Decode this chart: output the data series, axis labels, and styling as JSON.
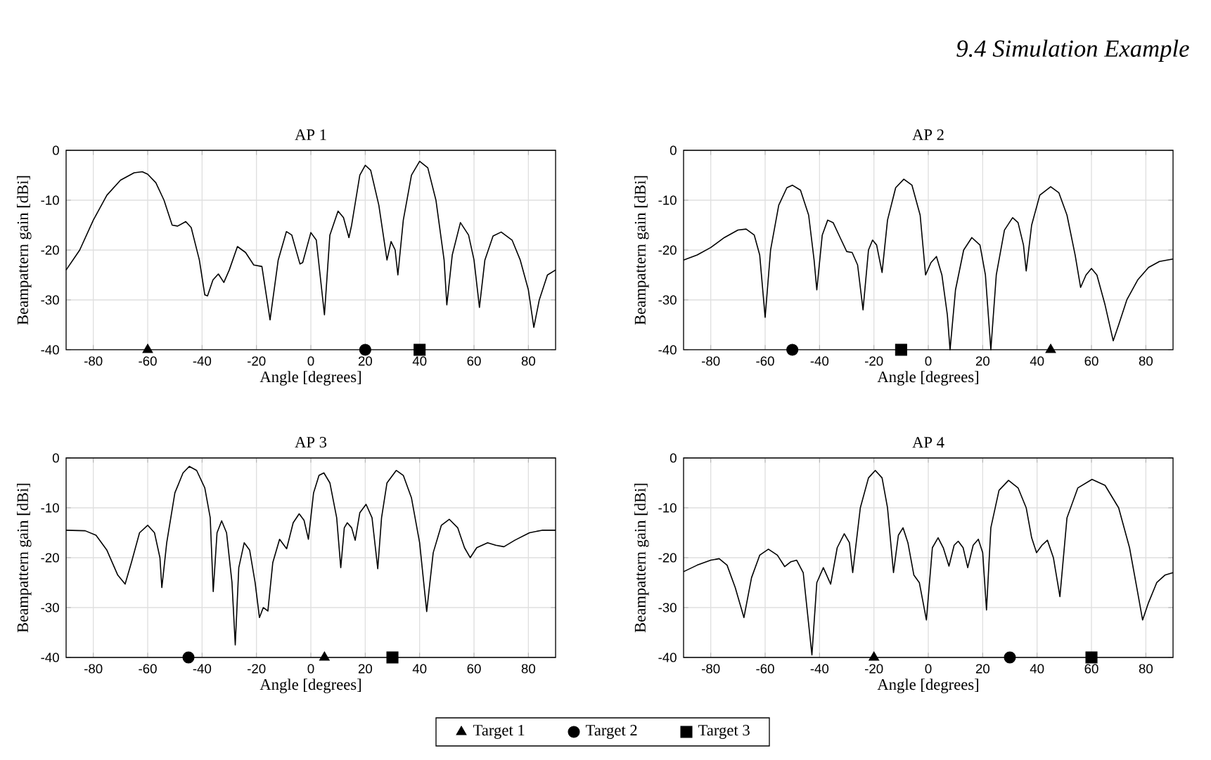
{
  "chart_data": [
    {
      "type": "line",
      "title": "AP 1",
      "xlabel": "Angle [degrees]",
      "ylabel": "Beampattern gain [dBi]",
      "xlim": [
        -90,
        90
      ],
      "ylim": [
        -40,
        0
      ],
      "xticks": [
        -80,
        -60,
        -40,
        -20,
        0,
        20,
        40,
        60,
        80
      ],
      "yticks": [
        -40,
        -30,
        -20,
        -10,
        0
      ],
      "grid": true,
      "legend": "bottom",
      "annotations": [
        "9.4 Simulation Example"
      ],
      "series": [
        {
          "type": "line",
          "color": "#000000",
          "line_style": "solid",
          "x": [
            -90,
            -85,
            -80,
            -75,
            -70,
            -65,
            -62,
            -60,
            -57,
            -54,
            -51,
            -49,
            -46,
            -44,
            -41,
            -39,
            -38,
            -36,
            -34,
            -32,
            -30,
            -27,
            -24,
            -21,
            -18,
            -15,
            -12,
            -9,
            -7,
            -4,
            -3,
            0,
            2,
            5,
            7,
            10,
            12,
            14,
            15,
            18,
            20,
            22,
            25,
            28,
            29.5,
            31,
            32,
            34,
            37,
            40,
            43,
            46,
            49,
            50,
            52,
            55,
            58,
            60,
            62,
            64,
            67,
            70,
            74,
            77,
            80,
            82,
            84,
            87,
            90
          ],
          "values": [
            -24,
            -20,
            -14,
            -9,
            -6,
            -4.5,
            -4.3,
            -4.8,
            -6.5,
            -10,
            -15,
            -15.2,
            -14.3,
            -15.5,
            -22,
            -29,
            -29.2,
            -26,
            -24.8,
            -26.5,
            -24,
            -19.3,
            -20.5,
            -23,
            -23.3,
            -34,
            -22,
            -16.3,
            -17,
            -22.8,
            -22.5,
            -16.5,
            -18,
            -33,
            -17,
            -12.2,
            -13.5,
            -17.5,
            -15,
            -5,
            -3,
            -4,
            -11,
            -22,
            -18.3,
            -20,
            -25,
            -14,
            -5,
            -2.2,
            -3.5,
            -10,
            -22,
            -31,
            -21,
            -14.5,
            -17,
            -22,
            -31.5,
            -22,
            -17.2,
            -16.4,
            -18,
            -22,
            -28,
            -35.5,
            -30,
            -25,
            -24
          ]
        },
        {
          "type": "scatter",
          "name": "Target 1",
          "marker": "triangle",
          "color": "#000000",
          "x": [
            -60
          ],
          "values": [
            -40
          ]
        },
        {
          "type": "scatter",
          "name": "Target 2",
          "marker": "circle",
          "color": "#000000",
          "x": [
            20
          ],
          "values": [
            -40
          ]
        },
        {
          "type": "scatter",
          "name": "Target 3",
          "marker": "square",
          "color": "#000000",
          "x": [
            40
          ],
          "values": [
            -40
          ]
        }
      ]
    },
    {
      "type": "line",
      "title": "AP 2",
      "xlabel": "Angle [degrees]",
      "ylabel": "Beampattern gain [dBi]",
      "xlim": [
        -90,
        90
      ],
      "ylim": [
        -40,
        0
      ],
      "xticks": [
        -80,
        -60,
        -40,
        -20,
        0,
        20,
        40,
        60,
        80
      ],
      "yticks": [
        -40,
        -30,
        -20,
        -10,
        0
      ],
      "grid": true,
      "series": [
        {
          "type": "line",
          "color": "#000000",
          "line_style": "solid",
          "x": [
            -90,
            -85,
            -80,
            -75,
            -70,
            -67,
            -64,
            -62,
            -60,
            -58,
            -55,
            -52,
            -50,
            -47,
            -44,
            -42,
            -41,
            -39,
            -37,
            -35,
            -32,
            -30,
            -28,
            -26,
            -24,
            -22,
            -20.5,
            -19,
            -17,
            -15,
            -12,
            -9,
            -6,
            -3,
            -1,
            1,
            3,
            5,
            7,
            8,
            10,
            13,
            16,
            19,
            21,
            23,
            25,
            28,
            31,
            33,
            35,
            36,
            38,
            41,
            45,
            48,
            51,
            54,
            56,
            58,
            60,
            62,
            65,
            68,
            70,
            73,
            77,
            81,
            85,
            90
          ],
          "values": [
            -22,
            -21,
            -19.5,
            -17.5,
            -16,
            -15.8,
            -17,
            -21,
            -33.5,
            -20,
            -11,
            -7.5,
            -7,
            -8,
            -13,
            -22,
            -28,
            -17,
            -14,
            -14.5,
            -18,
            -20.3,
            -20.5,
            -23,
            -32,
            -20,
            -18,
            -19,
            -24.5,
            -14,
            -7.5,
            -5.8,
            -7,
            -13,
            -25,
            -22.5,
            -21.3,
            -25,
            -33,
            -40,
            -28,
            -20,
            -17.5,
            -19,
            -25,
            -40,
            -25,
            -16,
            -13.5,
            -14.5,
            -19,
            -24.2,
            -15,
            -9,
            -7.3,
            -8.5,
            -13,
            -21,
            -27.5,
            -25,
            -23.7,
            -25,
            -31,
            -38.2,
            -35,
            -30,
            -26,
            -23.5,
            -22.3,
            -21.8
          ]
        },
        {
          "type": "scatter",
          "marker": "triangle",
          "color": "#000000",
          "x": [
            45
          ],
          "values": [
            -40
          ]
        },
        {
          "type": "scatter",
          "marker": "circle",
          "color": "#000000",
          "x": [
            -50
          ],
          "values": [
            -40
          ]
        },
        {
          "type": "scatter",
          "marker": "square",
          "color": "#000000",
          "x": [
            -10
          ],
          "values": [
            -40
          ]
        }
      ]
    },
    {
      "type": "line",
      "title": "AP 3",
      "xlabel": "Angle [degrees]",
      "ylabel": "Beampattern gain [dBi]",
      "xlim": [
        -90,
        90
      ],
      "ylim": [
        -40,
        0
      ],
      "xticks": [
        -80,
        -60,
        -40,
        -20,
        0,
        20,
        40,
        60,
        80
      ],
      "yticks": [
        -40,
        -30,
        -20,
        -10,
        0
      ],
      "grid": true,
      "series": [
        {
          "type": "line",
          "color": "#000000",
          "line_style": "solid",
          "x": [
            -90,
            -83,
            -79,
            -75,
            -71,
            -68.3,
            -66,
            -63,
            -60,
            -57.5,
            -55.5,
            -54.8,
            -53,
            -50,
            -47,
            -44.7,
            -42,
            -39,
            -37,
            -35.9,
            -34.5,
            -32.8,
            -31,
            -29,
            -27.8,
            -26.5,
            -24.5,
            -22.5,
            -20.5,
            -18.9,
            -17.5,
            -15.8,
            -14,
            -11.5,
            -8.9,
            -6.5,
            -4.3,
            -2.5,
            -0.9,
            1,
            3,
            4.8,
            7,
            9.5,
            11,
            12.3,
            13.4,
            15,
            16.3,
            18,
            20.3,
            22.5,
            24.6,
            26,
            28,
            31.4,
            34,
            37,
            40,
            42.6,
            45,
            48,
            50.9,
            54,
            56.5,
            58.6,
            61,
            65,
            68,
            71,
            75,
            80.4,
            85,
            90
          ],
          "values": [
            -14.5,
            -14.6,
            -15.5,
            -18.5,
            -23.5,
            -25.3,
            -21,
            -15,
            -13.5,
            -15,
            -20,
            -26,
            -17,
            -7,
            -3,
            -1.7,
            -2.5,
            -6,
            -12,
            -26.8,
            -15,
            -12.6,
            -15,
            -25,
            -37.5,
            -22,
            -17,
            -18.5,
            -25,
            -32,
            -30,
            -30.7,
            -21,
            -16.3,
            -18.2,
            -13,
            -11.2,
            -12.5,
            -16.3,
            -7,
            -3.5,
            -3,
            -5,
            -12,
            -22,
            -14,
            -13,
            -14,
            -16.5,
            -11,
            -9.3,
            -12,
            -22.2,
            -12,
            -5,
            -2.5,
            -3.5,
            -8,
            -17,
            -30.8,
            -19,
            -13.5,
            -12.3,
            -14,
            -18,
            -20,
            -18,
            -17,
            -17.5,
            -17.8,
            -16.5,
            -15,
            -14.5,
            -14.5
          ]
        },
        {
          "type": "scatter",
          "marker": "triangle",
          "color": "#000000",
          "x": [
            5
          ],
          "values": [
            -40
          ]
        },
        {
          "type": "scatter",
          "marker": "circle",
          "color": "#000000",
          "x": [
            -45
          ],
          "values": [
            -40
          ]
        },
        {
          "type": "scatter",
          "marker": "square",
          "color": "#000000",
          "x": [
            30
          ],
          "values": [
            -40
          ]
        }
      ]
    },
    {
      "type": "line",
      "title": "AP 4",
      "xlabel": "Angle [degrees]",
      "ylabel": "Beampattern gain [dBi]",
      "xlim": [
        -90,
        90
      ],
      "ylim": [
        -40,
        0
      ],
      "xticks": [
        -80,
        -60,
        -40,
        -20,
        0,
        20,
        40,
        60,
        80
      ],
      "yticks": [
        -40,
        -30,
        -20,
        -10,
        0
      ],
      "grid": true,
      "series": [
        {
          "type": "line",
          "color": "#000000",
          "line_style": "solid",
          "x": [
            -90,
            -85,
            -80,
            -76.9,
            -74,
            -71,
            -67.8,
            -65,
            -62,
            -58.8,
            -55.5,
            -52.8,
            -50.5,
            -48.4,
            -46,
            -42.8,
            -41,
            -38.6,
            -35.9,
            -33.5,
            -30.9,
            -29,
            -27.8,
            -25,
            -22,
            -19.5,
            -17,
            -15,
            -12.8,
            -11,
            -9.3,
            -7.5,
            -5.3,
            -3.3,
            -0.7,
            1.5,
            3.6,
            5.5,
            7.6,
            9.5,
            11,
            12.8,
            14.5,
            16.5,
            18.4,
            20,
            21.4,
            23,
            26,
            29.5,
            33,
            36,
            38,
            39.8,
            41.8,
            43.8,
            46,
            48.4,
            51,
            55,
            60.2,
            65,
            70,
            74,
            77,
            78.8,
            81,
            84,
            87,
            90
          ],
          "values": [
            -22.8,
            -21.5,
            -20.5,
            -20.2,
            -21.5,
            -26,
            -32,
            -24,
            -19.5,
            -18.3,
            -19.5,
            -21.8,
            -20.8,
            -20.5,
            -23,
            -39.5,
            -25,
            -22,
            -25.3,
            -18,
            -15.2,
            -17,
            -23,
            -10,
            -4,
            -2.5,
            -4,
            -10,
            -23,
            -15.5,
            -14,
            -17,
            -23.5,
            -25,
            -32.5,
            -18,
            -16,
            -18,
            -21.7,
            -17.5,
            -16.7,
            -18,
            -22,
            -17.5,
            -16.3,
            -19,
            -30.5,
            -14,
            -6.5,
            -4.5,
            -6,
            -10,
            -16,
            -19,
            -17.5,
            -16.5,
            -20,
            -27.8,
            -12,
            -6,
            -4.3,
            -5.5,
            -10,
            -18,
            -27,
            -32.5,
            -29,
            -25,
            -23.5,
            -23
          ]
        },
        {
          "type": "scatter",
          "marker": "triangle",
          "color": "#000000",
          "x": [
            -20
          ],
          "values": [
            -40
          ]
        },
        {
          "type": "scatter",
          "marker": "circle",
          "color": "#000000",
          "x": [
            30
          ],
          "values": [
            -40
          ]
        },
        {
          "type": "scatter",
          "marker": "square",
          "color": "#000000",
          "x": [
            60
          ],
          "values": [
            -40
          ]
        }
      ]
    }
  ]
}
